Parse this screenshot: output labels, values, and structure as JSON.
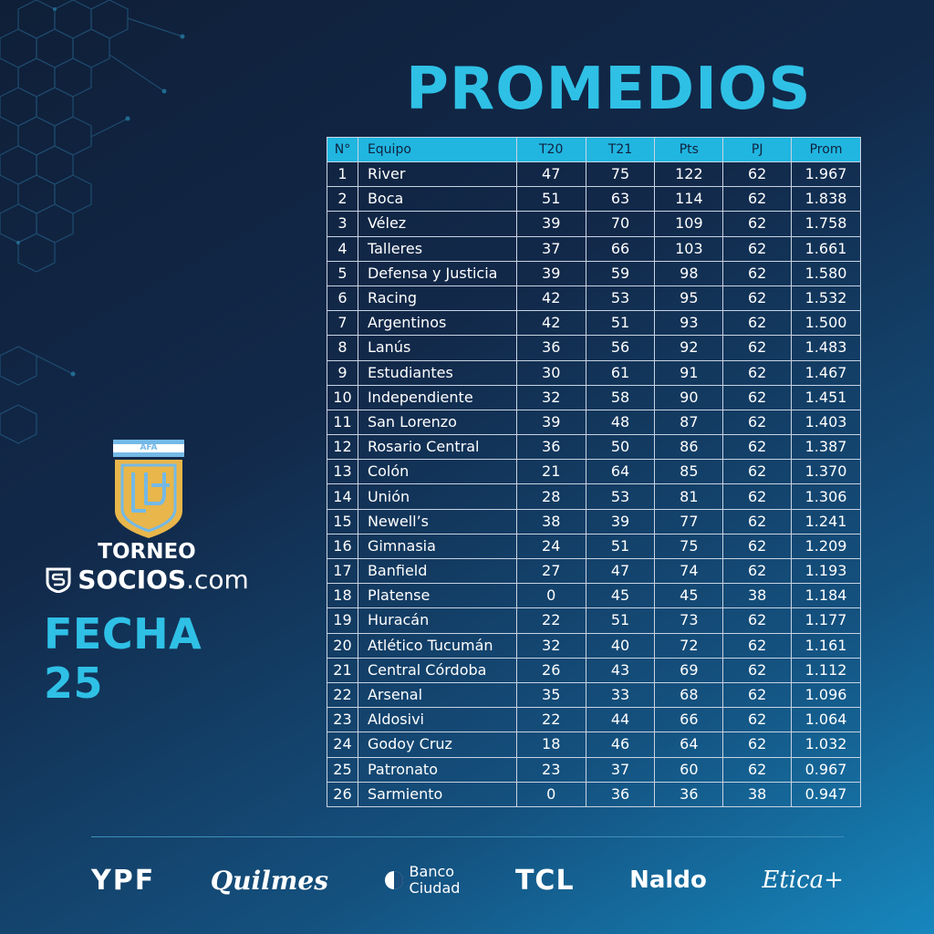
{
  "title": "PROMEDIOS",
  "table": {
    "headers": [
      "N°",
      "Equipo",
      "T20",
      "T21",
      "Pts",
      "PJ",
      "Prom"
    ],
    "rows": [
      [
        "1",
        "River",
        "47",
        "75",
        "122",
        "62",
        "1.967"
      ],
      [
        "2",
        "Boca",
        "51",
        "63",
        "114",
        "62",
        "1.838"
      ],
      [
        "3",
        "Vélez",
        "39",
        "70",
        "109",
        "62",
        "1.758"
      ],
      [
        "4",
        "Talleres",
        "37",
        "66",
        "103",
        "62",
        "1.661"
      ],
      [
        "5",
        "Defensa y Justicia",
        "39",
        "59",
        "98",
        "62",
        "1.580"
      ],
      [
        "6",
        "Racing",
        "42",
        "53",
        "95",
        "62",
        "1.532"
      ],
      [
        "7",
        "Argentinos",
        "42",
        "51",
        "93",
        "62",
        "1.500"
      ],
      [
        "8",
        "Lanús",
        "36",
        "56",
        "92",
        "62",
        "1.483"
      ],
      [
        "9",
        "Estudiantes",
        "30",
        "61",
        "91",
        "62",
        "1.467"
      ],
      [
        "10",
        "Independiente",
        "32",
        "58",
        "90",
        "62",
        "1.451"
      ],
      [
        "11",
        "San Lorenzo",
        "39",
        "48",
        "87",
        "62",
        "1.403"
      ],
      [
        "12",
        "Rosario Central",
        "36",
        "50",
        "86",
        "62",
        "1.387"
      ],
      [
        "13",
        "Colón",
        "21",
        "64",
        "85",
        "62",
        "1.370"
      ],
      [
        "14",
        "Unión",
        "28",
        "53",
        "81",
        "62",
        "1.306"
      ],
      [
        "15",
        "Newell’s",
        "38",
        "39",
        "77",
        "62",
        "1.241"
      ],
      [
        "16",
        "Gimnasia",
        "24",
        "51",
        "75",
        "62",
        "1.209"
      ],
      [
        "17",
        "Banfield",
        "27",
        "47",
        "74",
        "62",
        "1.193"
      ],
      [
        "18",
        "Platense",
        "0",
        "45",
        "45",
        "38",
        "1.184"
      ],
      [
        "19",
        "Huracán",
        "22",
        "51",
        "73",
        "62",
        "1.177"
      ],
      [
        "20",
        "Atlético Tucumán",
        "32",
        "40",
        "72",
        "62",
        "1.161"
      ],
      [
        "21",
        "Central Córdoba",
        "26",
        "43",
        "69",
        "62",
        "1.112"
      ],
      [
        "22",
        "Arsenal",
        "35",
        "33",
        "68",
        "62",
        "1.096"
      ],
      [
        "23",
        "Aldosivi",
        "22",
        "44",
        "66",
        "62",
        "1.064"
      ],
      [
        "24",
        "Godoy Cruz",
        "18",
        "46",
        "64",
        "62",
        "1.032"
      ],
      [
        "25",
        "Patronato",
        "23",
        "37",
        "60",
        "62",
        "0.967"
      ],
      [
        "26",
        "Sarmiento",
        "0",
        "36",
        "36",
        "38",
        "0.947"
      ]
    ]
  },
  "branding": {
    "afa_label": "AFA",
    "torneo": "TORNEO",
    "socios_bold": "SOCIOS",
    "socios_light": ".com",
    "fecha": "FECHA 25"
  },
  "sponsors": {
    "ypf": "YPF",
    "quilmes": "Quilmes",
    "banco_line1": "Banco",
    "banco_line2": "Ciudad",
    "tcl": "TCL",
    "naldo": "Naldo",
    "etica": "Etica+"
  },
  "colors": {
    "accent": "#2fc0e6",
    "header_bg": "#20b6e0",
    "logo_gold": "#e8b64a",
    "logo_blue": "#74b9e6"
  }
}
